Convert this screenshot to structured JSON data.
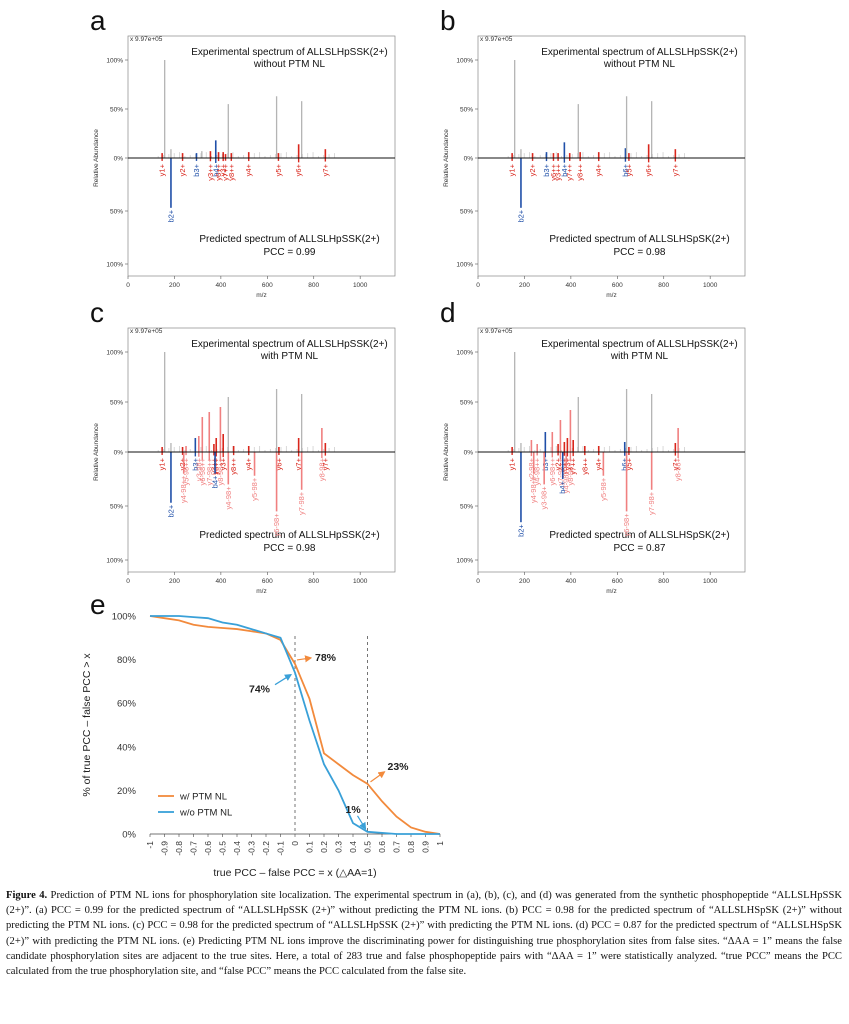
{
  "figure": {
    "caption_label": "Figure 4.",
    "caption_text": "Prediction of PTM NL ions for phosphorylation site localization. The experimental spectrum in (a), (b), (c), and (d) was generated from the synthetic phosphopeptide “ALLSLHpSSK (2+)”. (a) PCC = 0.99 for the predicted spectrum of “ALLSLHpSSK (2+)” without predicting the PTM NL ions. (b) PCC = 0.98 for the predicted spectrum of “ALLSLHSpSK (2+)” without predicting the PTM NL ions. (c) PCC = 0.98 for the predicted spectrum of “ALLSLHpSSK (2+)” with predicting the PTM NL ions. (d) PCC = 0.87 for the predicted spectrum of “ALLSLHSpSK (2+)” with predicting the PTM NL ions. (e) Predicting PTM NL ions improve the discriminating power for distinguishing true phosphorylation sites from false sites. “ΔAA = 1” means the false candidate phosphorylation sites are adjacent to the true sites. Here, a total of 283 true and false phosphopeptide pairs with “ΔAA = 1” were statistically analyzed. “true PCC” means the PCC calculated from the true phosphorylation site, and “false PCC” means the PCC calculated from the false site."
  },
  "chart_data": [
    {
      "type": "bar",
      "panel": "a",
      "scale_label": "x 9.97e+05",
      "top_title": [
        "Experimental spectrum of ALLSLHpSSK(2+)",
        "without PTM NL"
      ],
      "bottom_title": "Predicted spectrum of ALLSLHpSSK(2+)",
      "pcc": "PCC = 0.99",
      "xlabel": "m/z",
      "ylabel": "Relative Abundance",
      "xlim": [
        0,
        1150
      ],
      "xticks": [
        0,
        200,
        400,
        600,
        800,
        1000
      ],
      "yticks_top": [
        "100%",
        "50%",
        "0%"
      ],
      "yticks_bottom": [
        "50%",
        "100%"
      ],
      "experimental_peaks": [
        {
          "mz": 147,
          "intensity": 5,
          "label": "y1+",
          "color": "red"
        },
        {
          "mz": 158,
          "intensity": 100
        },
        {
          "mz": 185,
          "intensity": 9
        },
        {
          "mz": 235,
          "intensity": 5,
          "label": "y2+",
          "color": "red"
        },
        {
          "mz": 295,
          "intensity": 5,
          "label": "b3+",
          "color": "blue"
        },
        {
          "mz": 318,
          "intensity": 7
        },
        {
          "mz": 355,
          "intensity": 7,
          "label": "y3++",
          "color": "red"
        },
        {
          "mz": 378,
          "intensity": 18,
          "label": "b4+",
          "color": "blue"
        },
        {
          "mz": 390,
          "intensity": 6,
          "label": "y6++",
          "color": "red"
        },
        {
          "mz": 410,
          "intensity": 6,
          "label": "y3+",
          "color": "red"
        },
        {
          "mz": 420,
          "intensity": 4,
          "label": "y7++",
          "color": "red"
        },
        {
          "mz": 432,
          "intensity": 55
        },
        {
          "mz": 445,
          "intensity": 5,
          "label": "y8++",
          "color": "red"
        },
        {
          "mz": 520,
          "intensity": 6,
          "label": "y4+",
          "color": "red"
        },
        {
          "mz": 640,
          "intensity": 63
        },
        {
          "mz": 648,
          "intensity": 5,
          "label": "y5+",
          "color": "red"
        },
        {
          "mz": 735,
          "intensity": 14,
          "label": "y6+",
          "color": "red"
        },
        {
          "mz": 748,
          "intensity": 58
        },
        {
          "mz": 850,
          "intensity": 9,
          "label": "y7+",
          "color": "red"
        }
      ],
      "predicted_peaks": [
        {
          "mz": 185,
          "intensity": 47,
          "label": "b2+",
          "color": "blue"
        }
      ]
    },
    {
      "type": "bar",
      "panel": "b",
      "scale_label": "x 9.97e+05",
      "top_title": [
        "Experimental spectrum of ALLSLHpSSK(2+)",
        "without PTM NL"
      ],
      "bottom_title": "Predicted spectrum of ALLSLHSpSK(2+)",
      "pcc": "PCC = 0.98",
      "xlabel": "m/z",
      "ylabel": "Relative Abundance",
      "xlim": [
        0,
        1150
      ],
      "xticks": [
        0,
        200,
        400,
        600,
        800,
        1000
      ],
      "yticks_top": [
        "100%",
        "50%",
        "0%"
      ],
      "yticks_bottom": [
        "50%",
        "100%"
      ],
      "experimental_peaks": [
        {
          "mz": 147,
          "intensity": 5,
          "label": "y1+",
          "color": "red"
        },
        {
          "mz": 158,
          "intensity": 100
        },
        {
          "mz": 185,
          "intensity": 9
        },
        {
          "mz": 235,
          "intensity": 5,
          "label": "y2+",
          "color": "red"
        },
        {
          "mz": 295,
          "intensity": 6,
          "label": "b3+",
          "color": "blue"
        },
        {
          "mz": 325,
          "intensity": 5,
          "label": "y6++",
          "color": "red"
        },
        {
          "mz": 345,
          "intensity": 5,
          "label": "y3++",
          "color": "red"
        },
        {
          "mz": 372,
          "intensity": 16,
          "label": "b4+",
          "color": "blue"
        },
        {
          "mz": 395,
          "intensity": 5,
          "label": "y7++",
          "color": "red"
        },
        {
          "mz": 432,
          "intensity": 55
        },
        {
          "mz": 440,
          "intensity": 6,
          "label": "y8++",
          "color": "red"
        },
        {
          "mz": 520,
          "intensity": 6,
          "label": "y4+",
          "color": "red"
        },
        {
          "mz": 635,
          "intensity": 10,
          "label": "b6+",
          "color": "blue"
        },
        {
          "mz": 640,
          "intensity": 63
        },
        {
          "mz": 650,
          "intensity": 5,
          "label": "y5+",
          "color": "red"
        },
        {
          "mz": 735,
          "intensity": 14,
          "label": "y6+",
          "color": "red"
        },
        {
          "mz": 748,
          "intensity": 58
        },
        {
          "mz": 850,
          "intensity": 9,
          "label": "y7+",
          "color": "red"
        }
      ],
      "predicted_peaks": [
        {
          "mz": 185,
          "intensity": 47,
          "label": "b2+",
          "color": "blue"
        }
      ]
    },
    {
      "type": "bar",
      "panel": "c",
      "scale_label": "x 9.97e+05",
      "top_title": [
        "Experimental spectrum of ALLSLHpSSK(2+)",
        "with PTM NL"
      ],
      "bottom_title": "Predicted spectrum of ALLSLHpSSK(2+)",
      "pcc": "PCC = 0.98",
      "xlabel": "m/z",
      "ylabel": "Relative Abundance",
      "xlim": [
        0,
        1150
      ],
      "xticks": [
        0,
        200,
        400,
        600,
        800,
        1000
      ],
      "yticks_top": [
        "100%",
        "50%",
        "0%"
      ],
      "yticks_bottom": [
        "50%",
        "100%"
      ],
      "experimental_peaks": [
        {
          "mz": 147,
          "intensity": 5,
          "label": "y1+",
          "color": "red"
        },
        {
          "mz": 158,
          "intensity": 100
        },
        {
          "mz": 185,
          "intensity": 9
        },
        {
          "mz": 235,
          "intensity": 5,
          "label": "y2+",
          "color": "red"
        },
        {
          "mz": 250,
          "intensity": 6,
          "label": "y5-98++",
          "color": "lightred"
        },
        {
          "mz": 290,
          "intensity": 14,
          "label": "b3+",
          "color": "blue"
        },
        {
          "mz": 305,
          "intensity": 16,
          "label": "y3-98+",
          "color": "lightred"
        },
        {
          "mz": 320,
          "intensity": 35,
          "label": "y6-98++",
          "color": "lightred"
        },
        {
          "mz": 350,
          "intensity": 40,
          "label": "y7-98++",
          "color": "lightred"
        },
        {
          "mz": 370,
          "intensity": 8,
          "label": "y3++",
          "color": "red"
        },
        {
          "mz": 380,
          "intensity": 14,
          "label": "y6++",
          "color": "red"
        },
        {
          "mz": 398,
          "intensity": 45,
          "label": "y8-98++",
          "color": "lightred"
        },
        {
          "mz": 410,
          "intensity": 18,
          "label": "y3+",
          "color": "red"
        },
        {
          "mz": 432,
          "intensity": 55
        },
        {
          "mz": 455,
          "intensity": 6,
          "label": "y8++",
          "color": "red"
        },
        {
          "mz": 520,
          "intensity": 6,
          "label": "y4+",
          "color": "red"
        },
        {
          "mz": 640,
          "intensity": 63
        },
        {
          "mz": 650,
          "intensity": 5,
          "label": "y6+",
          "color": "red"
        },
        {
          "mz": 735,
          "intensity": 14,
          "label": "y7+",
          "color": "red"
        },
        {
          "mz": 748,
          "intensity": 58
        },
        {
          "mz": 835,
          "intensity": 24,
          "label": "y8-98+",
          "color": "lightred"
        },
        {
          "mz": 850,
          "intensity": 9,
          "label": "y7+",
          "color": "red"
        }
      ],
      "predicted_peaks": [
        {
          "mz": 185,
          "intensity": 47,
          "label": "b2+",
          "color": "blue"
        },
        {
          "mz": 240,
          "intensity": 20,
          "label": "y4-98++",
          "color": "lightred"
        },
        {
          "mz": 375,
          "intensity": 20,
          "label": "b4+",
          "color": "blue"
        },
        {
          "mz": 432,
          "intensity": 30,
          "label": "y4-98+",
          "color": "lightred"
        },
        {
          "mz": 545,
          "intensity": 22,
          "label": "y5-98+",
          "color": "lightred"
        },
        {
          "mz": 640,
          "intensity": 55,
          "label": "y6-98+",
          "color": "lightred"
        },
        {
          "mz": 748,
          "intensity": 35,
          "label": "y7-98+",
          "color": "lightred"
        }
      ]
    },
    {
      "type": "bar",
      "panel": "d",
      "scale_label": "x 9.97e+05",
      "top_title": [
        "Experimental spectrum of ALLSLHpSSK(2+)",
        "with PTM NL"
      ],
      "bottom_title": "Predicted spectrum of ALLSLHSpSK(2+)",
      "pcc": "PCC = 0.87",
      "xlabel": "m/z",
      "ylabel": "Relative Abundance",
      "xlim": [
        0,
        1150
      ],
      "xticks": [
        0,
        200,
        400,
        600,
        800,
        1000
      ],
      "yticks_top": [
        "100%",
        "50%",
        "0%"
      ],
      "yticks_bottom": [
        "50%",
        "100%"
      ],
      "experimental_peaks": [
        {
          "mz": 147,
          "intensity": 5,
          "label": "y1+",
          "color": "red"
        },
        {
          "mz": 158,
          "intensity": 100
        },
        {
          "mz": 185,
          "intensity": 9
        },
        {
          "mz": 230,
          "intensity": 12,
          "label": "y2-98+",
          "color": "lightred"
        },
        {
          "mz": 255,
          "intensity": 8,
          "label": "y4-98++",
          "color": "lightred"
        },
        {
          "mz": 290,
          "intensity": 20,
          "label": "b3+",
          "color": "blue"
        },
        {
          "mz": 320,
          "intensity": 20,
          "label": "y6-98++",
          "color": "lightred"
        },
        {
          "mz": 345,
          "intensity": 8,
          "label": "y2+",
          "color": "red"
        },
        {
          "mz": 355,
          "intensity": 32,
          "label": "y7-98++",
          "color": "lightred"
        },
        {
          "mz": 372,
          "intensity": 10,
          "label": "y6++",
          "color": "red"
        },
        {
          "mz": 385,
          "intensity": 14,
          "label": "y3+",
          "color": "red"
        },
        {
          "mz": 398,
          "intensity": 42,
          "label": "y8-98++",
          "color": "lightred"
        },
        {
          "mz": 410,
          "intensity": 12,
          "label": "y7++",
          "color": "red"
        },
        {
          "mz": 432,
          "intensity": 55
        },
        {
          "mz": 460,
          "intensity": 6,
          "label": "y8++",
          "color": "red"
        },
        {
          "mz": 520,
          "intensity": 6,
          "label": "y4+",
          "color": "red"
        },
        {
          "mz": 632,
          "intensity": 10,
          "label": "b6+",
          "color": "blue"
        },
        {
          "mz": 640,
          "intensity": 63
        },
        {
          "mz": 650,
          "intensity": 5,
          "label": "y5+",
          "color": "red"
        },
        {
          "mz": 748,
          "intensity": 58
        },
        {
          "mz": 850,
          "intensity": 9,
          "label": "y7+",
          "color": "red"
        },
        {
          "mz": 862,
          "intensity": 24,
          "label": "y8-98+",
          "color": "lightred"
        }
      ],
      "predicted_peaks": [
        {
          "mz": 185,
          "intensity": 65,
          "label": "b2+",
          "color": "blue"
        },
        {
          "mz": 240,
          "intensity": 20,
          "label": "y4-98++",
          "color": "lightred"
        },
        {
          "mz": 285,
          "intensity": 30,
          "label": "y3-98+",
          "color": "lightred"
        },
        {
          "mz": 365,
          "intensity": 25,
          "label": "b4+",
          "color": "blue"
        },
        {
          "mz": 380,
          "intensity": 15,
          "label": "y4-98+",
          "color": "lightred"
        },
        {
          "mz": 540,
          "intensity": 22,
          "label": "y5-98+",
          "color": "lightred"
        },
        {
          "mz": 640,
          "intensity": 55,
          "label": "y6-98+",
          "color": "lightred"
        },
        {
          "mz": 748,
          "intensity": 35,
          "label": "y7-98+",
          "color": "lightred"
        }
      ]
    },
    {
      "type": "line",
      "panel": "e",
      "xlabel": "true PCC – false PCC = x (△AA=1)",
      "ylabel": "% of true PCC – false PCC > x",
      "x": [
        -1,
        -0.9,
        -0.8,
        -0.7,
        -0.6,
        -0.5,
        -0.4,
        -0.3,
        -0.2,
        -0.1,
        0,
        0.1,
        0.2,
        0.3,
        0.4,
        0.5,
        0.6,
        0.7,
        0.8,
        0.9,
        1
      ],
      "xtick_labels": [
        "-1",
        "-0.9",
        "-0.8",
        "-0.7",
        "-0.6",
        "-0.5",
        "-0.4",
        "-0.3",
        "-0.2",
        "-0.1",
        "0",
        "0.1",
        "0.2",
        "0.3",
        "0.4",
        "0.5",
        "0.6",
        "0.7",
        "0.8",
        "0.9",
        "1"
      ],
      "yticks": [
        0,
        20,
        40,
        60,
        80,
        100
      ],
      "ylim": [
        0,
        100
      ],
      "series": [
        {
          "name": "w/ PTM NL",
          "color": "#f28a3c",
          "values": [
            100,
            99,
            98,
            96,
            95,
            94.5,
            94,
            93,
            92,
            89,
            78,
            62,
            37,
            32,
            27,
            23,
            15,
            8,
            3,
            1,
            0
          ]
        },
        {
          "name": "w/o PTM NL",
          "color": "#39a0d8",
          "values": [
            100,
            100,
            100,
            99.5,
            99,
            97,
            96,
            94,
            92,
            90,
            74,
            52,
            32,
            20,
            5,
            1,
            0.5,
            0,
            0,
            0,
            0
          ]
        }
      ],
      "annotations": [
        {
          "text": "78%",
          "x": 0,
          "y": 78,
          "color": "#f28a3c"
        },
        {
          "text": "74%",
          "x": 0,
          "y": 74,
          "color": "#39a0d8"
        },
        {
          "text": "23%",
          "x": 0.5,
          "y": 23,
          "color": "#f28a3c"
        },
        {
          "text": "1%",
          "x": 0.5,
          "y": 1,
          "color": "#39a0d8"
        }
      ],
      "dashed_lines_at_x": [
        0,
        0.5
      ],
      "legend_position": "bottom-left"
    }
  ],
  "panel_labels": [
    "a",
    "b",
    "c",
    "d",
    "e"
  ],
  "colors": {
    "red": "#d9261c",
    "lightred": "#f08080",
    "blue": "#1f4fa8",
    "gray": "#b4b4b4",
    "orange": "#f28a3c",
    "cyan": "#39a0d8"
  }
}
